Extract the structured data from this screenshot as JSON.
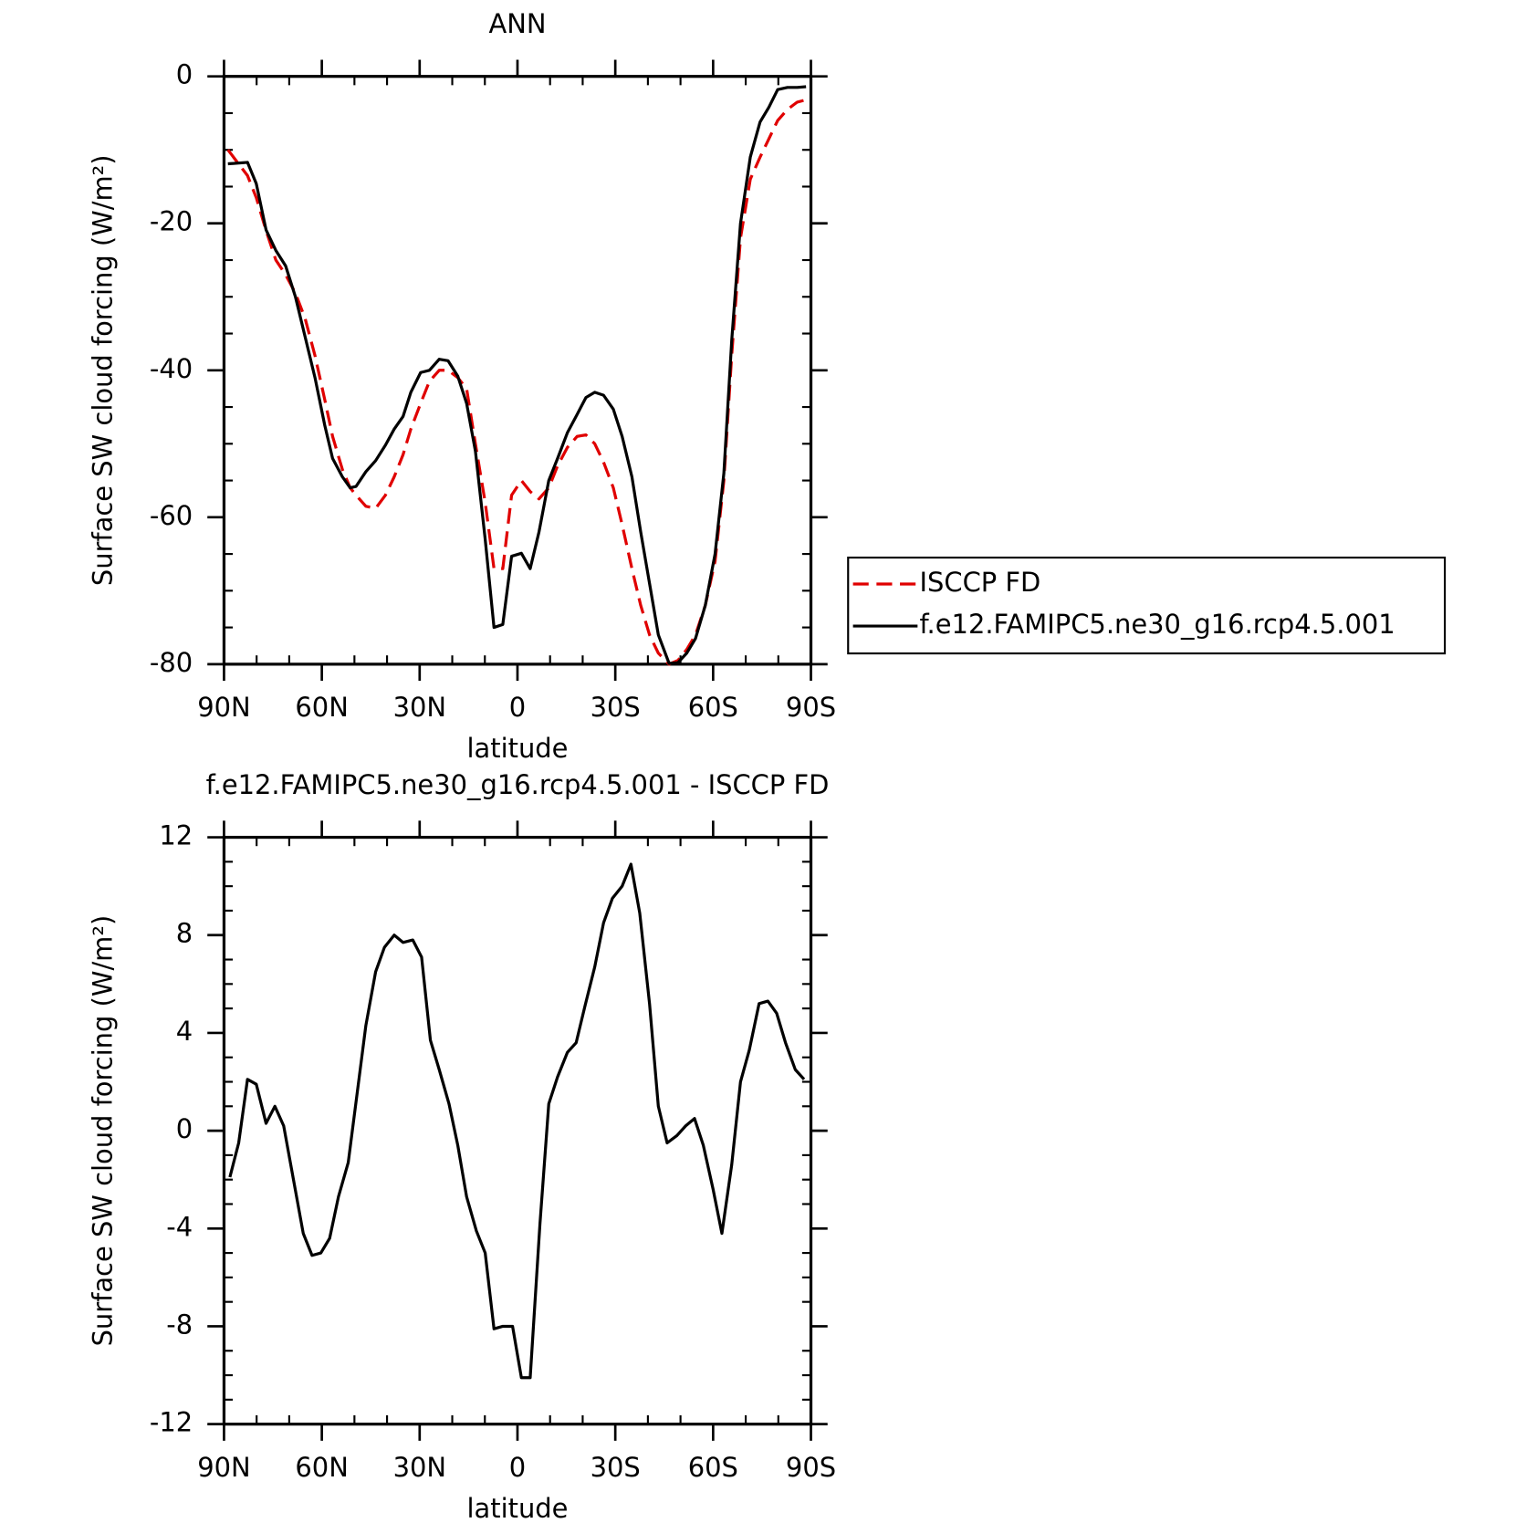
{
  "chart_data": [
    {
      "type": "line",
      "title": "ANN",
      "xlabel": "latitude",
      "ylabel": "Surface SW cloud forcing (W/m²)",
      "xlim": [
        90,
        -90
      ],
      "ylim": [
        -80,
        0
      ],
      "xticks": [
        {
          "value": 90,
          "label": "90N"
        },
        {
          "value": 60,
          "label": "60N"
        },
        {
          "value": 30,
          "label": "30N"
        },
        0,
        {
          "value": -30,
          "label": "30S"
        },
        {
          "value": -60,
          "label": "60S"
        },
        {
          "value": -90,
          "label": "90S"
        }
      ],
      "yticks": [
        0,
        -20,
        -40,
        -60,
        -80
      ],
      "legend": "right",
      "x": [
        88.8,
        82.8,
        80.1,
        77.1,
        74.1,
        71.1,
        68.1,
        65.1,
        62.1,
        59.1,
        56.7,
        53.7,
        51.3,
        49.5,
        46.5,
        43.5,
        40.5,
        37.8,
        35.1,
        32.7,
        29.7,
        27.0,
        24.0,
        21.3,
        18.3,
        15.6,
        12.9,
        9.9,
        7.2,
        4.5,
        1.8,
        -1.2,
        -3.9,
        -6.6,
        -9.6,
        -12.3,
        -15.3,
        -18.3,
        -21.0,
        -23.7,
        -26.4,
        -29.4,
        -32.1,
        -35.1,
        -37.8,
        -40.5,
        -43.2,
        -46.5,
        -49.2,
        -51.9,
        -54.6,
        -57.6,
        -60.6,
        -63.3,
        -65.7,
        -68.4,
        -71.4,
        -74.4,
        -77.1,
        -79.8,
        -82.8,
        -85.8,
        -88.5
      ],
      "series": [
        {
          "name": "ISCCP FD",
          "color": "#e00000",
          "style": "dashed",
          "values": [
            -10,
            -13.5,
            -16.5,
            -21,
            -25,
            -27,
            -29.5,
            -33,
            -38,
            -44,
            -49,
            -53.5,
            -56,
            -57,
            -58.5,
            -58.8,
            -57,
            -54.5,
            -51.5,
            -48,
            -44.5,
            -41.5,
            -40,
            -40,
            -41,
            -42.5,
            -50,
            -58,
            -67,
            -67,
            -57,
            -55,
            -56.5,
            -57.5,
            -56,
            -53,
            -50.5,
            -49,
            -48.8,
            -50,
            -52.5,
            -56,
            -61,
            -67,
            -72,
            -76,
            -78.5,
            -80,
            -79.5,
            -78,
            -76,
            -72,
            -66,
            -55,
            -38,
            -22,
            -14,
            -11,
            -8.5,
            -6,
            -4.5,
            -3.5,
            -3.2
          ]
        },
        {
          "name": "f.e12.FAMIPC5.ne30_g16.rcp4.5.001",
          "color": "#000000",
          "style": "solid",
          "values": [
            -11.9,
            -11.7,
            -14.6,
            -20.9,
            -23.7,
            -25.8,
            -30,
            -35.5,
            -41,
            -47.5,
            -52,
            -54.5,
            -56,
            -55.8,
            -53.8,
            -52.3,
            -50.2,
            -48,
            -46.3,
            -43,
            -40.3,
            -40,
            -38.5,
            -38.7,
            -40.8,
            -44.5,
            -51,
            -63,
            -75,
            -74.6,
            -65.3,
            -64.9,
            -67,
            -62,
            -55,
            -52,
            -48.5,
            -46,
            -43.7,
            -43,
            -43.4,
            -45.3,
            -49,
            -54.5,
            -62,
            -69,
            -76,
            -79.9,
            -79.8,
            -78.5,
            -76.5,
            -72,
            -65,
            -54,
            -36,
            -20,
            -11,
            -6.2,
            -4.2,
            -1.8,
            -1.5,
            -1.5,
            -1.4
          ]
        }
      ]
    },
    {
      "type": "line",
      "title": "f.e12.FAMIPC5.ne30_g16.rcp4.5.001 - ISCCP FD",
      "xlabel": "latitude",
      "ylabel": "Surface SW cloud forcing (W/m²)",
      "xlim": [
        90,
        -90
      ],
      "ylim": [
        -12,
        12
      ],
      "xticks": [
        {
          "value": 90,
          "label": "90N"
        },
        {
          "value": 60,
          "label": "60N"
        },
        {
          "value": 30,
          "label": "30N"
        },
        0,
        {
          "value": -30,
          "label": "30S"
        },
        {
          "value": -60,
          "label": "60S"
        },
        {
          "value": -90,
          "label": "90S"
        }
      ],
      "yticks": [
        12,
        8,
        4,
        0,
        -4,
        -8,
        -12
      ],
      "color": "#000000",
      "style": "solid",
      "x": [
        88.2,
        85.5,
        82.8,
        80.1,
        77.1,
        74.4,
        71.7,
        68.7,
        65.7,
        63.0,
        60.3,
        57.6,
        54.9,
        51.9,
        49.2,
        46.5,
        43.5,
        40.8,
        37.8,
        35.1,
        32.1,
        29.4,
        26.7,
        24.0,
        21.0,
        18.3,
        15.6,
        12.6,
        9.9,
        7.2,
        4.5,
        1.5,
        -1.2,
        -3.9,
        -6.9,
        -9.6,
        -12.3,
        -15.3,
        -18.0,
        -20.7,
        -23.7,
        -26.4,
        -29.1,
        -32.1,
        -34.8,
        -37.5,
        -40.5,
        -43.2,
        -45.9,
        -48.9,
        -51.6,
        -54.3,
        -57.0,
        -60.0,
        -62.7,
        -65.7,
        -68.4,
        -71.1,
        -74.1,
        -76.8,
        -79.5,
        -82.2,
        -85.2,
        -87.9
      ],
      "values": [
        -1.9,
        -0.5,
        2.1,
        1.9,
        0.3,
        1.0,
        0.2,
        -2.0,
        -4.2,
        -5.1,
        -5.0,
        -4.4,
        -2.7,
        -1.3,
        1.5,
        4.3,
        6.5,
        7.5,
        8.0,
        7.7,
        7.8,
        7.1,
        3.7,
        2.5,
        1.1,
        -0.6,
        -2.7,
        -4.1,
        -5.0,
        -8.1,
        -8.0,
        -8.0,
        -10.1,
        -10.1,
        -3.8,
        1.1,
        2.2,
        3.2,
        3.6,
        5.1,
        6.7,
        8.5,
        9.5,
        10.0,
        10.9,
        8.9,
        5.2,
        1.0,
        -0.5,
        -0.2,
        0.2,
        0.5,
        -0.6,
        -2.4,
        -4.2,
        -1.4,
        2.0,
        3.3,
        5.2,
        5.3,
        4.8,
        3.6,
        2.5,
        2.1
      ]
    }
  ]
}
